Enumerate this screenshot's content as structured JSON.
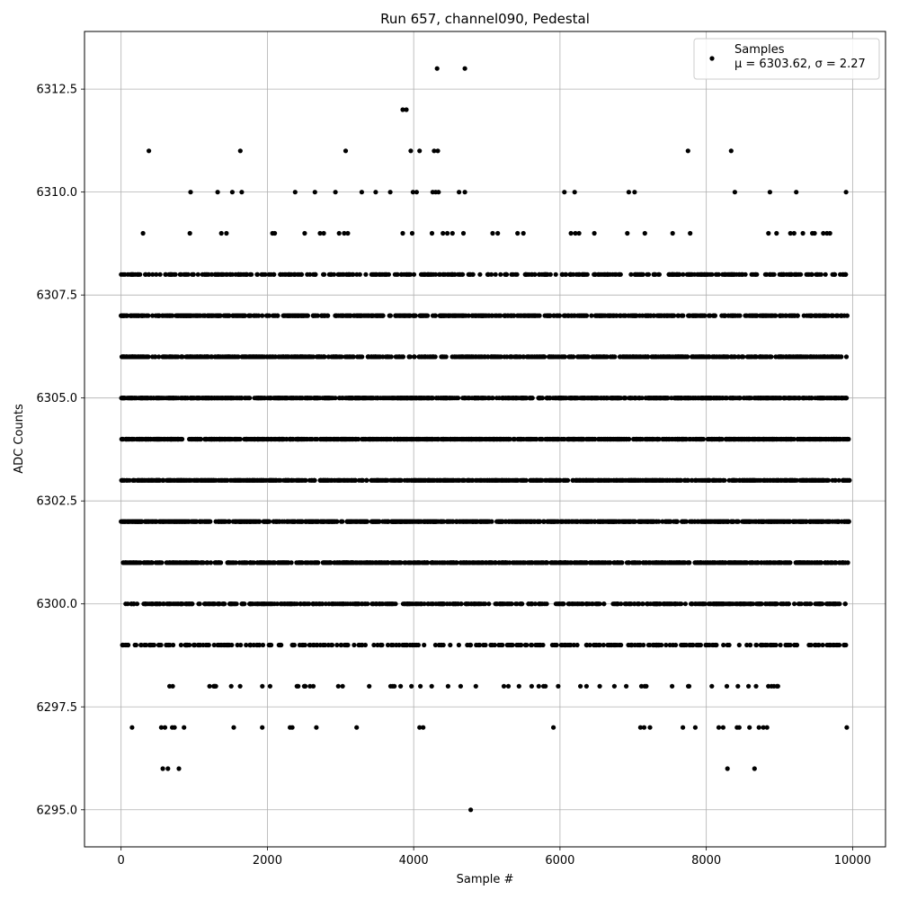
{
  "chart_data": {
    "type": "scatter",
    "title": "Run 657, channel090, Pedestal",
    "xlabel": "Sample #",
    "ylabel": "ADC Counts",
    "xlim": [
      -500,
      10450
    ],
    "ylim": [
      6294.1,
      6313.9
    ],
    "xticks": [
      0,
      2000,
      4000,
      6000,
      8000,
      10000
    ],
    "xtick_labels": [
      "0",
      "2000",
      "4000",
      "6000",
      "8000",
      "10000"
    ],
    "yticks": [
      6295.0,
      6297.5,
      6300.0,
      6302.5,
      6305.0,
      6307.5,
      6310.0,
      6312.5
    ],
    "ytick_labels": [
      "6295.0",
      "6297.5",
      "6300.0",
      "6302.5",
      "6305.0",
      "6307.5",
      "6310.0",
      "6312.5"
    ],
    "grid": true,
    "legend_position": "top-right",
    "series": [
      {
        "name": "Samples",
        "legend_line2": "μ = 6303.62, σ = 2.27",
        "color": "#000000",
        "summary": {
          "n_samples": 10000,
          "mean": 6303.62,
          "sigma": 2.27
        },
        "points": [
          {
            "x": 4320,
            "y": 6313
          },
          {
            "x": 4700,
            "y": 6313
          },
          {
            "x": 3850,
            "y": 6312
          },
          {
            "x": 3900,
            "y": 6312
          },
          {
            "x": 380,
            "y": 6311
          },
          {
            "x": 1630,
            "y": 6311
          },
          {
            "x": 3070,
            "y": 6311
          },
          {
            "x": 3960,
            "y": 6311
          },
          {
            "x": 4080,
            "y": 6311
          },
          {
            "x": 4280,
            "y": 6311
          },
          {
            "x": 4330,
            "y": 6311
          },
          {
            "x": 7750,
            "y": 6311
          },
          {
            "x": 8340,
            "y": 6311
          },
          {
            "x": 950,
            "y": 6310
          },
          {
            "x": 1320,
            "y": 6310
          },
          {
            "x": 1520,
            "y": 6310
          },
          {
            "x": 1650,
            "y": 6310
          },
          {
            "x": 2380,
            "y": 6310
          },
          {
            "x": 2650,
            "y": 6310
          },
          {
            "x": 2930,
            "y": 6310
          },
          {
            "x": 3290,
            "y": 6310
          },
          {
            "x": 3480,
            "y": 6310
          },
          {
            "x": 3680,
            "y": 6310
          },
          {
            "x": 3990,
            "y": 6310
          },
          {
            "x": 4040,
            "y": 6310
          },
          {
            "x": 4260,
            "y": 6310
          },
          {
            "x": 4300,
            "y": 6310
          },
          {
            "x": 4340,
            "y": 6310
          },
          {
            "x": 4620,
            "y": 6310
          },
          {
            "x": 4700,
            "y": 6310
          },
          {
            "x": 6060,
            "y": 6310
          },
          {
            "x": 6200,
            "y": 6310
          },
          {
            "x": 6940,
            "y": 6310
          },
          {
            "x": 7020,
            "y": 6310
          },
          {
            "x": 8390,
            "y": 6310
          },
          {
            "x": 8870,
            "y": 6310
          },
          {
            "x": 9230,
            "y": 6310
          },
          {
            "x": 9910,
            "y": 6310
          },
          {
            "x": 300,
            "y": 6309
          },
          {
            "x": 940,
            "y": 6309
          },
          {
            "x": 1370,
            "y": 6309
          },
          {
            "x": 1440,
            "y": 6309
          },
          {
            "x": 2070,
            "y": 6309
          },
          {
            "x": 2100,
            "y": 6309
          },
          {
            "x": 2510,
            "y": 6309
          },
          {
            "x": 2720,
            "y": 6309
          },
          {
            "x": 2770,
            "y": 6309
          },
          {
            "x": 2980,
            "y": 6309
          },
          {
            "x": 3050,
            "y": 6309
          },
          {
            "x": 3100,
            "y": 6309
          },
          {
            "x": 3850,
            "y": 6309
          },
          {
            "x": 3980,
            "y": 6309
          },
          {
            "x": 4250,
            "y": 6309
          },
          {
            "x": 4400,
            "y": 6309
          },
          {
            "x": 4460,
            "y": 6309
          },
          {
            "x": 4530,
            "y": 6309
          },
          {
            "x": 4680,
            "y": 6309
          },
          {
            "x": 5080,
            "y": 6309
          },
          {
            "x": 5150,
            "y": 6309
          },
          {
            "x": 5420,
            "y": 6309
          },
          {
            "x": 5500,
            "y": 6309
          },
          {
            "x": 6150,
            "y": 6309
          },
          {
            "x": 6210,
            "y": 6309
          },
          {
            "x": 6260,
            "y": 6309
          },
          {
            "x": 6470,
            "y": 6309
          },
          {
            "x": 6920,
            "y": 6309
          },
          {
            "x": 7160,
            "y": 6309
          },
          {
            "x": 7540,
            "y": 6309
          },
          {
            "x": 7780,
            "y": 6309
          },
          {
            "x": 8850,
            "y": 6309
          },
          {
            "x": 8960,
            "y": 6309
          },
          {
            "x": 9150,
            "y": 6309
          },
          {
            "x": 9200,
            "y": 6309
          },
          {
            "x": 9320,
            "y": 6309
          },
          {
            "x": 9450,
            "y": 6309
          },
          {
            "x": 9480,
            "y": 6309
          },
          {
            "x": 9600,
            "y": 6309
          },
          {
            "x": 9650,
            "y": 6309
          },
          {
            "x": 9690,
            "y": 6309
          },
          {
            "x": 150,
            "y": 6297
          },
          {
            "x": 550,
            "y": 6297
          },
          {
            "x": 600,
            "y": 6297
          },
          {
            "x": 700,
            "y": 6297
          },
          {
            "x": 730,
            "y": 6297
          },
          {
            "x": 860,
            "y": 6297
          },
          {
            "x": 1540,
            "y": 6297
          },
          {
            "x": 1930,
            "y": 6297
          },
          {
            "x": 2310,
            "y": 6297
          },
          {
            "x": 2340,
            "y": 6297
          },
          {
            "x": 2670,
            "y": 6297
          },
          {
            "x": 3220,
            "y": 6297
          },
          {
            "x": 4080,
            "y": 6297
          },
          {
            "x": 4130,
            "y": 6297
          },
          {
            "x": 5910,
            "y": 6297
          },
          {
            "x": 7100,
            "y": 6297
          },
          {
            "x": 7150,
            "y": 6297
          },
          {
            "x": 7230,
            "y": 6297
          },
          {
            "x": 7680,
            "y": 6297
          },
          {
            "x": 7850,
            "y": 6297
          },
          {
            "x": 8170,
            "y": 6297
          },
          {
            "x": 8230,
            "y": 6297
          },
          {
            "x": 8420,
            "y": 6297
          },
          {
            "x": 8450,
            "y": 6297
          },
          {
            "x": 8590,
            "y": 6297
          },
          {
            "x": 8720,
            "y": 6297
          },
          {
            "x": 8780,
            "y": 6297
          },
          {
            "x": 8830,
            "y": 6297
          },
          {
            "x": 9920,
            "y": 6297
          },
          {
            "x": 570,
            "y": 6296
          },
          {
            "x": 640,
            "y": 6296
          },
          {
            "x": 790,
            "y": 6296
          },
          {
            "x": 8290,
            "y": 6296
          },
          {
            "x": 8660,
            "y": 6296
          },
          {
            "x": 4780,
            "y": 6295
          }
        ],
        "bands": [
          {
            "y": 6308,
            "n": 430,
            "from": 0,
            "to": 9930,
            "seed": 8
          },
          {
            "y": 6307,
            "n": 610,
            "from": 0,
            "to": 9940,
            "seed": 7
          },
          {
            "y": 6306,
            "n": 760,
            "from": 0,
            "to": 9930,
            "seed": 6
          },
          {
            "y": 6305,
            "n": 900,
            "from": 0,
            "to": 9950,
            "seed": 5
          },
          {
            "y": 6304,
            "n": 980,
            "from": 0,
            "to": 9960,
            "seed": 4
          },
          {
            "y": 6303,
            "n": 980,
            "from": 0,
            "to": 9960,
            "seed": 3
          },
          {
            "y": 6302,
            "n": 900,
            "from": 0,
            "to": 9950,
            "seed": 2
          },
          {
            "y": 6301,
            "n": 760,
            "from": 0,
            "to": 9950,
            "seed": 11
          },
          {
            "y": 6300,
            "n": 560,
            "from": 50,
            "to": 9920,
            "seed": 12
          },
          {
            "y": 6299,
            "n": 330,
            "from": 0,
            "to": 9940,
            "seed": 13
          },
          {
            "y": 6298,
            "n": 60,
            "from": 650,
            "to": 9000,
            "seed": 14
          }
        ]
      }
    ]
  }
}
